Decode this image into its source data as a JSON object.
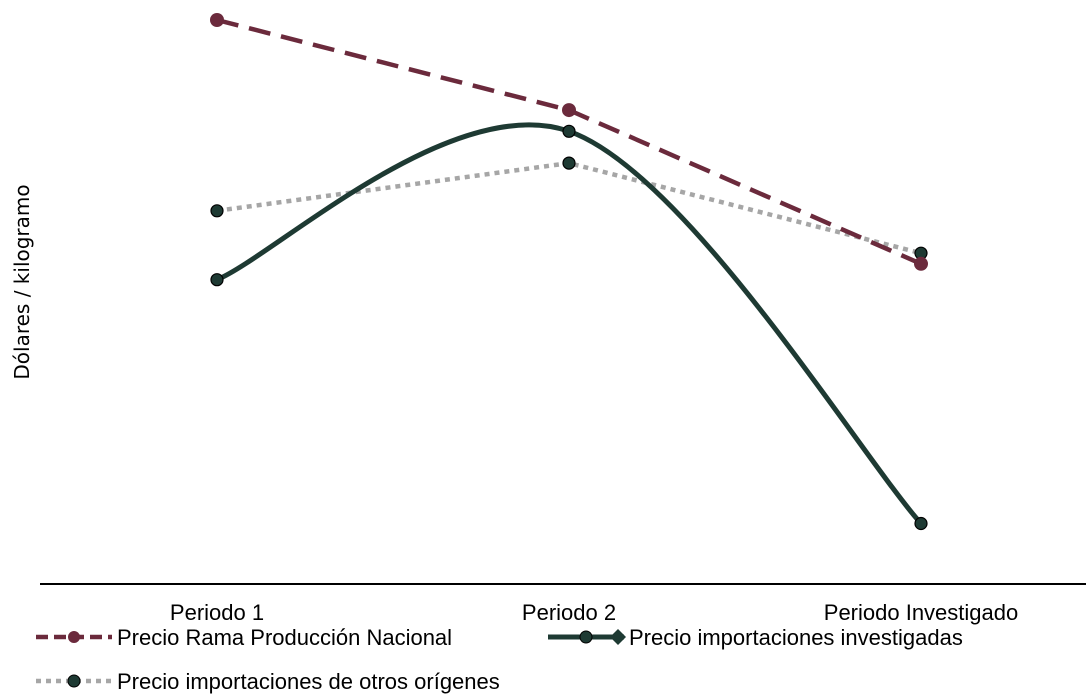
{
  "chart_data": {
    "type": "line",
    "title": "",
    "xlabel": "",
    "ylabel": "Dólares / kilogramo",
    "categories": [
      "Periodo 1",
      "Periodo 2",
      "Periodo Investigado"
    ],
    "ylim": [
      0,
      100
    ],
    "grid": false,
    "legend_position": "bottom",
    "series": [
      {
        "name": "Precio Rama Producción Nacional",
        "values": [
          100,
          83,
          54
        ],
        "color": "#6b2a3c",
        "line_style": "dashed",
        "smooth": false,
        "marker": "circle"
      },
      {
        "name": "Precio importaciones investigadas",
        "values": [
          51,
          79,
          5
        ],
        "color": "#1e3a33",
        "line_style": "solid",
        "smooth": true,
        "marker": "circle"
      },
      {
        "name": "Precio importaciones de otros orígenes",
        "values": [
          64,
          73,
          56
        ],
        "color": "#a6a6a6",
        "marker_color": "#1e3a33",
        "line_style": "dotted",
        "smooth": false,
        "marker": "circle"
      }
    ]
  }
}
